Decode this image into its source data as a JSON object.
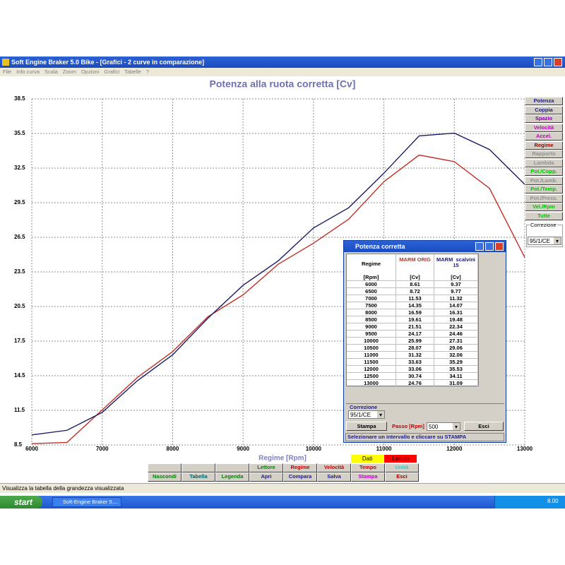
{
  "window": {
    "title": "Soft Engine Braker 5.0 Bike - [Grafici - 2 curve in comparazione]",
    "menu": [
      "File",
      "Info curva",
      "Scala",
      "Zoom",
      "Opzioni",
      "Grafici",
      "Tabelle",
      "?"
    ]
  },
  "chart_data": {
    "type": "line",
    "title": "Potenza alla ruota corretta [Cv]",
    "x_label": "Regime [Rpm]",
    "x": [
      6000,
      6500,
      7000,
      7500,
      8000,
      8500,
      9000,
      9500,
      10000,
      10500,
      11000,
      11500,
      12000,
      12500,
      13000
    ],
    "series": [
      {
        "name": "MARM ORIG",
        "color": "#c0302a",
        "values": [
          8.61,
          8.72,
          11.53,
          14.35,
          16.59,
          19.61,
          21.51,
          24.17,
          25.99,
          28.07,
          31.32,
          33.63,
          33.06,
          30.74,
          24.76
        ]
      },
      {
        "name": "MARM  scalvini 15",
        "color": "#1c1c66",
        "values": [
          9.37,
          9.77,
          11.32,
          14.07,
          16.31,
          19.48,
          22.34,
          24.46,
          27.31,
          29.06,
          32.06,
          35.29,
          35.53,
          34.11,
          31.09
        ]
      }
    ],
    "xlim": [
      6000,
      13000
    ],
    "xticks": [
      6000,
      7000,
      8000,
      9000,
      10000,
      11000,
      12000,
      13000
    ],
    "ylim": [
      8.5,
      38.5
    ],
    "yticks": [
      8.5,
      11.5,
      14.5,
      17.5,
      20.5,
      23.5,
      26.5,
      29.5,
      32.5,
      35.5,
      38.5
    ],
    "grid": true
  },
  "side_buttons": [
    {
      "label": "Potenza",
      "color": "#1c1c80"
    },
    {
      "label": "Coppia",
      "color": "#1c1c80"
    },
    {
      "label": "Spazio",
      "color": "#8000a0"
    },
    {
      "label": "Velocità",
      "color": "#c000c0"
    },
    {
      "label": "Accel.",
      "color": "#c000c0"
    },
    {
      "label": "Regime",
      "color": "#a00000"
    },
    {
      "label": "Rapporto",
      "color": "#909090"
    },
    {
      "label": "Lambda",
      "color": "#909090"
    },
    {
      "label": "Pot./Copp.",
      "color": "#00c000"
    },
    {
      "label": "Pot./Lamb.",
      "color": "#909090"
    },
    {
      "label": "Pot./Temp.",
      "color": "#00c000"
    },
    {
      "label": "Pot./Press.",
      "color": "#909090"
    },
    {
      "label": "Vel./Rpm",
      "color": "#00c000"
    },
    {
      "label": "Tutte",
      "color": "#00c000"
    }
  ],
  "correzione": {
    "label": "Correzione",
    "value": "95/1/CE"
  },
  "bottom_bar": {
    "flags": [
      {
        "label": "Dati",
        "background": "#ffff00"
      },
      {
        "label": "Lancio",
        "background": "#ff0000"
      }
    ],
    "row1": [
      {
        "label": "Lettore",
        "color": "#008000"
      },
      {
        "label": "Regime",
        "color": "#c00000"
      },
      {
        "label": "Velocità",
        "color": "#c00000"
      },
      {
        "label": "Tempo",
        "color": "#c00000"
      },
      {
        "label": "Unità",
        "color": "#40c0c0"
      }
    ],
    "row2": [
      {
        "label": "Nascondi",
        "color": "#008000"
      },
      {
        "label": "Tabella",
        "color": "#006060"
      },
      {
        "label": "Legenda",
        "color": "#008000"
      },
      {
        "label": "Apri",
        "color": "#1c1c80"
      },
      {
        "label": "Compara",
        "color": "#1c1c80"
      },
      {
        "label": "Salva",
        "color": "#1c1c80"
      },
      {
        "label": "Stampa",
        "color": "#c000c0"
      },
      {
        "label": "Esci",
        "color": "#a00000"
      }
    ]
  },
  "status_bar": "Visualizza la tabella della grandezza visualizzata",
  "dialog": {
    "title": "Potenza corretta",
    "regime_header": "Regime",
    "units": [
      "[Rpm]",
      "[Cv]",
      "[Cv]"
    ],
    "correzione_label": "Correzione",
    "correzione_value": "95/1/CE",
    "print_button": "Stampa",
    "step_label": "Passo [Rpm]",
    "step_value": "500",
    "exit_button": "Esci",
    "hint": "Selezionare un intervallo e cliccare su STAMPA"
  },
  "taskbar": {
    "start": "start",
    "task": "Soft-Engine Braker 5....",
    "clock": "8.00"
  }
}
